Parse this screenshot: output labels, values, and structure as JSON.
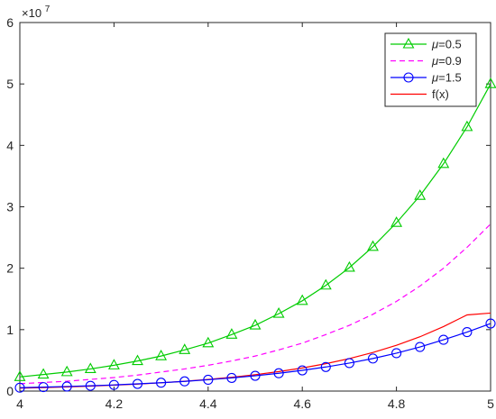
{
  "chart_data": {
    "type": "line",
    "title": "",
    "xlabel": "",
    "ylabel": "",
    "xlim": [
      4,
      5
    ],
    "ylim": [
      0,
      6
    ],
    "y_exponent_label": "×10",
    "y_exponent_power": "7",
    "x_ticks": [
      4,
      4.2,
      4.4,
      4.6,
      4.8,
      5
    ],
    "x_tick_labels": [
      "4",
      "4.2",
      "4.4",
      "4.6",
      "4.8",
      "5"
    ],
    "y_ticks": [
      0,
      1,
      2,
      3,
      4,
      5,
      6
    ],
    "y_tick_labels": [
      "0",
      "1",
      "2",
      "3",
      "4",
      "5",
      "6"
    ],
    "grid": false,
    "legend_position": "top-right",
    "legend": [
      {
        "symbol": "μ",
        "text": "=0.5"
      },
      {
        "symbol": "μ",
        "text": "=0.9"
      },
      {
        "symbol": "μ",
        "text": "=1.5"
      },
      {
        "symbol": "",
        "text": "f(x)"
      }
    ],
    "x": [
      4.0,
      4.05,
      4.1,
      4.15,
      4.2,
      4.25,
      4.3,
      4.35,
      4.4,
      4.45,
      4.5,
      4.55,
      4.6,
      4.65,
      4.7,
      4.75,
      4.8,
      4.85,
      4.9,
      4.95,
      5.0
    ],
    "series": [
      {
        "color": "#00cc00",
        "style": "solid",
        "marker": "triangle",
        "values": [
          0.23,
          0.27,
          0.31,
          0.36,
          0.42,
          0.49,
          0.57,
          0.67,
          0.78,
          0.92,
          1.07,
          1.26,
          1.47,
          1.72,
          2.01,
          2.35,
          2.74,
          3.18,
          3.7,
          4.3,
          5.0
        ]
      },
      {
        "color": "#ff00ff",
        "style": "dashed",
        "marker": "none",
        "values": [
          0.12,
          0.14,
          0.16,
          0.19,
          0.22,
          0.26,
          0.31,
          0.36,
          0.42,
          0.49,
          0.57,
          0.67,
          0.78,
          0.92,
          1.07,
          1.25,
          1.46,
          1.71,
          2.0,
          2.34,
          2.72
        ]
      },
      {
        "color": "#0000ff",
        "style": "solid",
        "marker": "circle",
        "values": [
          0.055,
          0.064,
          0.074,
          0.086,
          0.1,
          0.117,
          0.136,
          0.158,
          0.184,
          0.214,
          0.249,
          0.29,
          0.337,
          0.392,
          0.456,
          0.53,
          0.617,
          0.718,
          0.835,
          0.96,
          1.1
        ]
      },
      {
        "color": "#ff0000",
        "style": "solid",
        "marker": "none",
        "values": [
          0.048,
          0.057,
          0.068,
          0.081,
          0.096,
          0.114,
          0.135,
          0.16,
          0.19,
          0.225,
          0.267,
          0.317,
          0.376,
          0.446,
          0.529,
          0.628,
          0.745,
          0.884,
          1.05,
          1.24,
          1.27
        ]
      }
    ]
  }
}
